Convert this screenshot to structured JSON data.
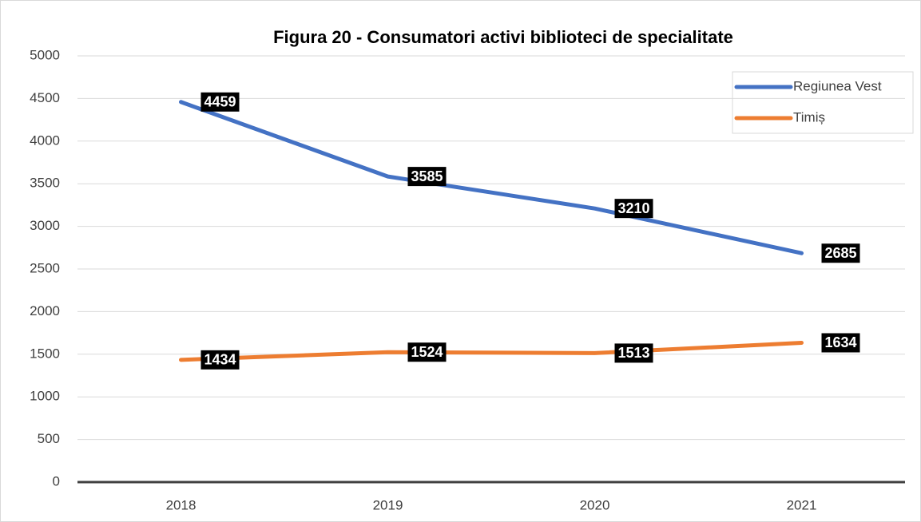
{
  "chart_data": {
    "type": "line",
    "title": "Figura 20 - Consumatori activi biblioteci de specialitate",
    "categories": [
      "2018",
      "2019",
      "2020",
      "2021"
    ],
    "series": [
      {
        "name": "Regiunea Vest",
        "color": "#4472c4",
        "values": [
          4459,
          3585,
          3210,
          2685
        ]
      },
      {
        "name": "Timiș",
        "color": "#ed7d31",
        "values": [
          1434,
          1524,
          1513,
          1634
        ]
      }
    ],
    "ylim": [
      0,
      5000
    ],
    "yticks": [
      0,
      500,
      1000,
      1500,
      2000,
      2500,
      3000,
      3500,
      4000,
      4500,
      5000
    ],
    "grid": true,
    "legend": "top-right"
  }
}
